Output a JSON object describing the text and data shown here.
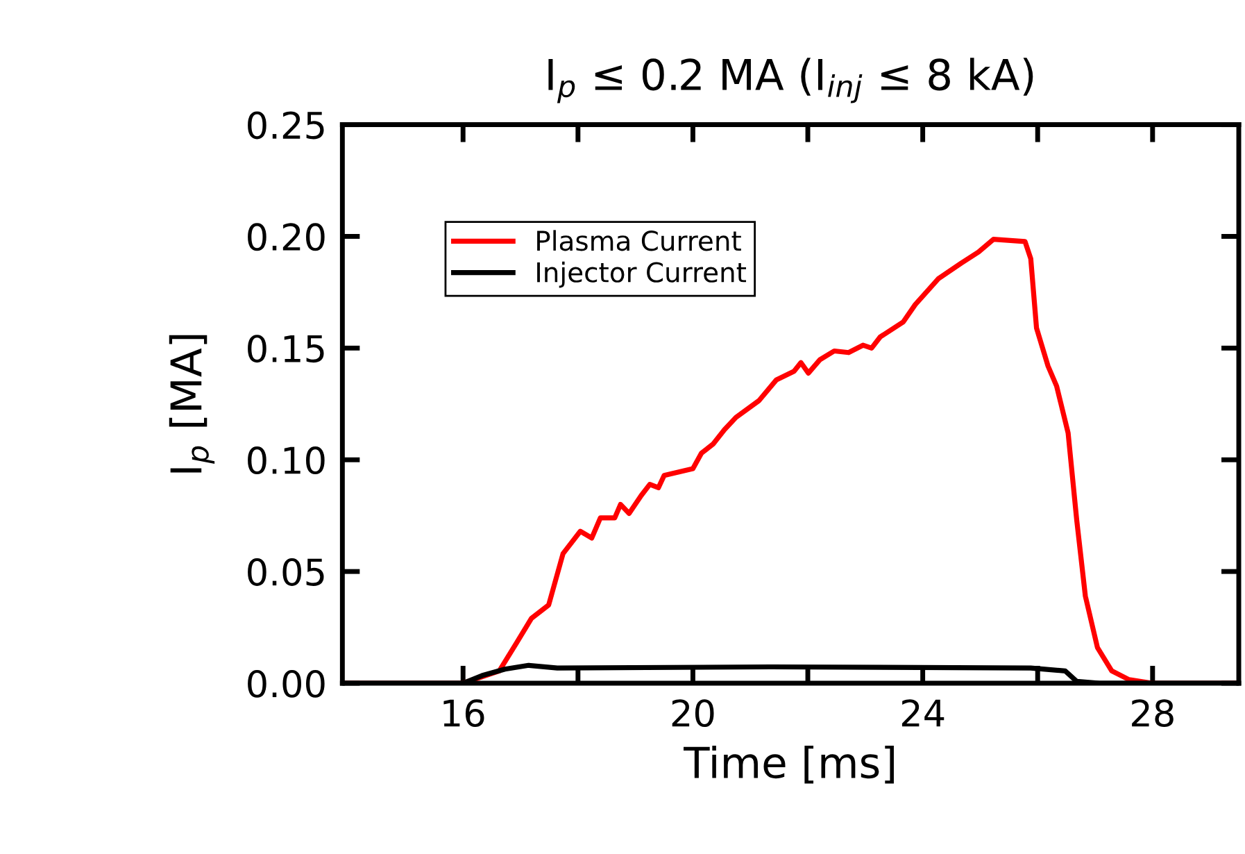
{
  "chart_data": {
    "type": "line",
    "title": "I$_{p}$ ≤ 0.2 MA (I$_{inj}$ ≤ 8 kA)",
    "xlabel": "Time [ms]",
    "ylabel": "I$_{p}$ [MA]",
    "xlim": [
      13.9,
      29.5
    ],
    "ylim": [
      0,
      0.25
    ],
    "xticks": [
      16,
      {
        "value": 18,
        "label": null
      },
      20,
      {
        "value": 22,
        "label": null
      },
      24,
      {
        "value": 26,
        "label": null
      },
      28
    ],
    "yticks": [
      {
        "value": 0,
        "label": "0.00"
      },
      0.05,
      {
        "value": 0.1,
        "label": "0.10"
      },
      0.15,
      {
        "value": 0.2,
        "label": "0.20"
      },
      0.25
    ],
    "grid": false,
    "legend": "top left",
    "marker": "none",
    "line_style": "solid",
    "series": [
      {
        "name": "Plasma Current",
        "color": "#ff0000",
        "x": [
          13.9,
          16.0,
          16.63,
          16.93,
          17.19,
          17.49,
          17.74,
          18.04,
          18.24,
          18.39,
          18.64,
          18.74,
          18.89,
          19.1,
          19.25,
          19.4,
          19.5,
          20.0,
          20.15,
          20.35,
          20.55,
          20.75,
          21.15,
          21.45,
          21.76,
          21.88,
          22.01,
          22.21,
          22.46,
          22.71,
          22.96,
          23.11,
          23.26,
          23.66,
          23.87,
          24.27,
          24.67,
          24.97,
          25.23,
          25.78,
          25.88,
          25.98,
          26.18,
          26.33,
          26.53,
          26.68,
          26.83,
          27.04,
          27.29,
          27.59,
          27.99,
          29.48
        ],
        "values": [
          0,
          0,
          0.0055,
          0.018,
          0.029,
          0.035,
          0.058,
          0.068,
          0.065,
          0.074,
          0.074,
          0.08,
          0.076,
          0.084,
          0.089,
          0.0875,
          0.093,
          0.096,
          0.103,
          0.107,
          0.1135,
          0.119,
          0.1265,
          0.1357,
          0.1396,
          0.1435,
          0.1388,
          0.1448,
          0.1487,
          0.148,
          0.1513,
          0.15,
          0.155,
          0.1617,
          0.1695,
          0.181,
          0.188,
          0.193,
          0.1987,
          0.1977,
          0.19,
          0.159,
          0.142,
          0.133,
          0.112,
          0.073,
          0.039,
          0.016,
          0.0055,
          0.0016,
          0,
          0
        ]
      },
      {
        "name": "Injector Current",
        "color": "#000000",
        "x": [
          13.9,
          16.0,
          16.33,
          16.73,
          17.14,
          17.64,
          21.36,
          25.88,
          26.48,
          26.68,
          27.08,
          29.48
        ],
        "values": [
          0,
          0,
          0.0034,
          0.0063,
          0.008,
          0.0068,
          0.0073,
          0.0068,
          0.0055,
          0.0008,
          0,
          0
        ]
      }
    ]
  }
}
